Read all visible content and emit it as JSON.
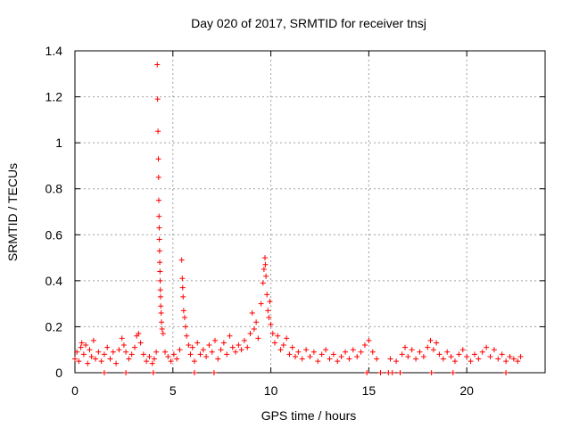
{
  "chart_data": {
    "type": "scatter",
    "title": "Day 020 of 2017, SRMTID for receiver tnsj",
    "xlabel": "GPS time / hours",
    "ylabel": "SRMTID / TECUs",
    "xlim": [
      0,
      24
    ],
    "ylim": [
      0,
      1.4
    ],
    "xticks": [
      0,
      5,
      10,
      15,
      20
    ],
    "xtick_labels": [
      "0",
      "5",
      "10",
      "15",
      "20"
    ],
    "yticks": [
      0,
      0.2,
      0.4,
      0.6,
      0.8,
      1.0,
      1.2,
      1.4
    ],
    "ytick_labels": [
      "0",
      "0.2",
      "0.4",
      "0.6",
      "0.8",
      "1",
      "1.2",
      "1.4"
    ],
    "grid": true,
    "marker": "+",
    "series": [
      {
        "name": "SRMTID",
        "color": "#ff0000",
        "points": [
          [
            0.0,
            0.06
          ],
          [
            0.1,
            0.09
          ],
          [
            0.2,
            0.05
          ],
          [
            0.3,
            0.11
          ],
          [
            0.35,
            0.13
          ],
          [
            0.45,
            0.08
          ],
          [
            0.55,
            0.12
          ],
          [
            0.65,
            0.04
          ],
          [
            0.75,
            0.1
          ],
          [
            0.85,
            0.07
          ],
          [
            0.95,
            0.14
          ],
          [
            1.05,
            0.06
          ],
          [
            1.2,
            0.09
          ],
          [
            1.35,
            0.05
          ],
          [
            1.5,
            0.08
          ],
          [
            1.65,
            0.11
          ],
          [
            1.8,
            0.06
          ],
          [
            1.95,
            0.09
          ],
          [
            2.1,
            0.04
          ],
          [
            2.25,
            0.1
          ],
          [
            2.4,
            0.15
          ],
          [
            2.5,
            0.12
          ],
          [
            2.6,
            0.09
          ],
          [
            2.75,
            0.06
          ],
          [
            2.9,
            0.08
          ],
          [
            3.05,
            0.11
          ],
          [
            3.15,
            0.16
          ],
          [
            3.25,
            0.17
          ],
          [
            3.35,
            0.13
          ],
          [
            3.5,
            0.08
          ],
          [
            3.65,
            0.05
          ],
          [
            3.8,
            0.07
          ],
          [
            3.95,
            0.04
          ],
          [
            4.05,
            0.06
          ],
          [
            4.15,
            0.09
          ],
          [
            4.2,
            1.34
          ],
          [
            4.22,
            1.19
          ],
          [
            4.24,
            1.05
          ],
          [
            4.26,
            0.93
          ],
          [
            4.27,
            0.85
          ],
          [
            4.28,
            0.75
          ],
          [
            4.29,
            0.68
          ],
          [
            4.3,
            0.63
          ],
          [
            4.31,
            0.58
          ],
          [
            4.32,
            0.53
          ],
          [
            4.33,
            0.48
          ],
          [
            4.34,
            0.44
          ],
          [
            4.35,
            0.4
          ],
          [
            4.36,
            0.36
          ],
          [
            4.37,
            0.33
          ],
          [
            4.38,
            0.29
          ],
          [
            4.4,
            0.26
          ],
          [
            4.42,
            0.22
          ],
          [
            4.45,
            0.19
          ],
          [
            4.5,
            0.17
          ],
          [
            4.6,
            0.09
          ],
          [
            4.75,
            0.07
          ],
          [
            4.9,
            0.05
          ],
          [
            5.05,
            0.08
          ],
          [
            5.2,
            0.06
          ],
          [
            5.35,
            0.1
          ],
          [
            5.45,
            0.49
          ],
          [
            5.48,
            0.41
          ],
          [
            5.5,
            0.37
          ],
          [
            5.52,
            0.33
          ],
          [
            5.55,
            0.27
          ],
          [
            5.6,
            0.24
          ],
          [
            5.65,
            0.2
          ],
          [
            5.7,
            0.16
          ],
          [
            5.8,
            0.12
          ],
          [
            5.9,
            0.08
          ],
          [
            6.0,
            0.11
          ],
          [
            6.1,
            0.05
          ],
          [
            6.25,
            0.13
          ],
          [
            6.4,
            0.08
          ],
          [
            6.55,
            0.1
          ],
          [
            6.7,
            0.07
          ],
          [
            6.85,
            0.12
          ],
          [
            7.0,
            0.09
          ],
          [
            7.15,
            0.14
          ],
          [
            7.3,
            0.06
          ],
          [
            7.45,
            0.1
          ],
          [
            7.6,
            0.13
          ],
          [
            7.75,
            0.08
          ],
          [
            7.9,
            0.16
          ],
          [
            8.05,
            0.11
          ],
          [
            8.2,
            0.09
          ],
          [
            8.35,
            0.12
          ],
          [
            8.5,
            0.1
          ],
          [
            8.65,
            0.14
          ],
          [
            8.8,
            0.11
          ],
          [
            8.95,
            0.17
          ],
          [
            9.05,
            0.26
          ],
          [
            9.15,
            0.19
          ],
          [
            9.25,
            0.22
          ],
          [
            9.35,
            0.15
          ],
          [
            9.5,
            0.3
          ],
          [
            9.6,
            0.39
          ],
          [
            9.65,
            0.45
          ],
          [
            9.7,
            0.5
          ],
          [
            9.72,
            0.47
          ],
          [
            9.75,
            0.42
          ],
          [
            9.8,
            0.34
          ],
          [
            9.85,
            0.27
          ],
          [
            9.9,
            0.24
          ],
          [
            9.95,
            0.31
          ],
          [
            10.0,
            0.21
          ],
          [
            10.1,
            0.17
          ],
          [
            10.2,
            0.13
          ],
          [
            10.35,
            0.16
          ],
          [
            10.5,
            0.1
          ],
          [
            10.65,
            0.12
          ],
          [
            10.8,
            0.15
          ],
          [
            10.95,
            0.08
          ],
          [
            11.1,
            0.11
          ],
          [
            11.25,
            0.07
          ],
          [
            11.4,
            0.09
          ],
          [
            11.6,
            0.06
          ],
          [
            11.8,
            0.1
          ],
          [
            12.0,
            0.07
          ],
          [
            12.2,
            0.09
          ],
          [
            12.4,
            0.05
          ],
          [
            12.6,
            0.08
          ],
          [
            12.8,
            0.1
          ],
          [
            13.0,
            0.06
          ],
          [
            13.2,
            0.08
          ],
          [
            13.4,
            0.05
          ],
          [
            13.6,
            0.07
          ],
          [
            13.8,
            0.09
          ],
          [
            14.0,
            0.06
          ],
          [
            14.2,
            0.1
          ],
          [
            14.4,
            0.07
          ],
          [
            14.6,
            0.09
          ],
          [
            14.8,
            0.12
          ],
          [
            15.0,
            0.14
          ],
          [
            15.2,
            0.09
          ],
          [
            15.4,
            0.06
          ],
          [
            14.9,
            0.0
          ],
          [
            15.6,
            0.0
          ],
          [
            16.0,
            0.0
          ],
          [
            16.2,
            0.0
          ],
          [
            16.6,
            0.0
          ],
          [
            1.5,
            0.0
          ],
          [
            2.6,
            0.0
          ],
          [
            4.0,
            0.0
          ],
          [
            6.1,
            0.0
          ],
          [
            7.1,
            0.0
          ],
          [
            22.0,
            0.0
          ],
          [
            19.3,
            0.0
          ],
          [
            18.2,
            0.0
          ],
          [
            16.1,
            0.06
          ],
          [
            16.4,
            0.05
          ],
          [
            16.7,
            0.08
          ],
          [
            16.85,
            0.11
          ],
          [
            17.0,
            0.07
          ],
          [
            17.2,
            0.1
          ],
          [
            17.4,
            0.06
          ],
          [
            17.6,
            0.09
          ],
          [
            17.8,
            0.07
          ],
          [
            18.0,
            0.11
          ],
          [
            18.15,
            0.14
          ],
          [
            18.3,
            0.1
          ],
          [
            18.45,
            0.13
          ],
          [
            18.6,
            0.08
          ],
          [
            18.8,
            0.06
          ],
          [
            19.0,
            0.09
          ],
          [
            19.2,
            0.07
          ],
          [
            19.4,
            0.05
          ],
          [
            19.6,
            0.08
          ],
          [
            19.8,
            0.1
          ],
          [
            20.0,
            0.07
          ],
          [
            20.2,
            0.05
          ],
          [
            20.4,
            0.08
          ],
          [
            20.6,
            0.06
          ],
          [
            20.8,
            0.09
          ],
          [
            21.0,
            0.11
          ],
          [
            21.2,
            0.07
          ],
          [
            21.4,
            0.1
          ],
          [
            21.6,
            0.06
          ],
          [
            21.8,
            0.08
          ],
          [
            22.0,
            0.05
          ],
          [
            22.2,
            0.07
          ],
          [
            22.4,
            0.06
          ],
          [
            22.6,
            0.05
          ],
          [
            22.75,
            0.07
          ]
        ]
      }
    ]
  }
}
